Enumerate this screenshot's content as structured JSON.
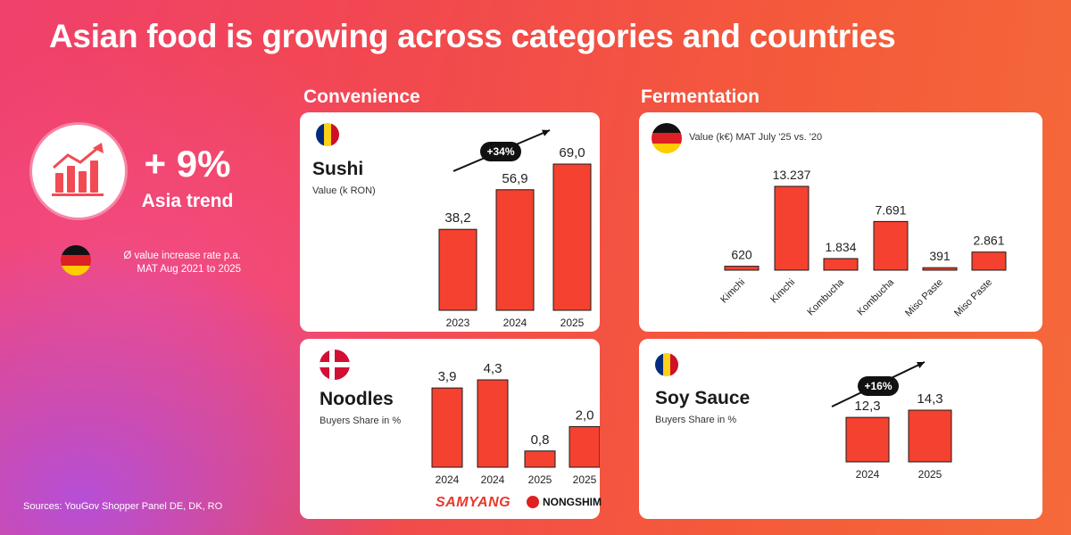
{
  "title": "Asian food is growing across categories and countries",
  "colors": {
    "bar": "#f5412f",
    "bar_stroke": "#1a1a1a",
    "accent": "#f24b55"
  },
  "left_panel": {
    "icon": "growth-chart-icon",
    "increase": "+ 9%",
    "label": "Asia trend",
    "note_line1": "Ø value increase rate p.a.",
    "note_line2": "MAT Aug 2021 to 2025"
  },
  "source": "Sources: YouGov Shopper Panel DE, DK, RO",
  "sections": {
    "convenience": "Convenience",
    "fermentation": "Fermentation"
  },
  "logos": {
    "samyang": "SAMYANG",
    "nongshim": "NONGSHIM"
  },
  "chart_data": [
    {
      "id": "sushi",
      "type": "bar",
      "title": "Sushi",
      "subtitle": "Value (k RON)",
      "country_flag": "Romania",
      "categories": [
        "2023",
        "2024",
        "2025"
      ],
      "values": [
        38.2,
        56.9,
        69.0
      ],
      "labels": [
        "38,2",
        "56,9",
        "69,0"
      ],
      "trend": "+34%",
      "ylim": [
        0,
        69.0
      ]
    },
    {
      "id": "noodles",
      "type": "bar",
      "title": "Noodles",
      "subtitle": "Buyers Share in %",
      "country_flag": "Denmark",
      "categories": [
        "2024",
        "2024",
        "2025",
        "2025"
      ],
      "values": [
        3.9,
        4.3,
        0.8,
        2.0
      ],
      "labels": [
        "3,9",
        "4,3",
        "0,8",
        "2,0"
      ],
      "brands": [
        "SAMYANG",
        "SAMYANG",
        "NONGSHIM",
        "NONGSHIM"
      ],
      "ylim": [
        0,
        4.3
      ]
    },
    {
      "id": "fermentation",
      "type": "bar",
      "title": "",
      "subtitle": "Value (k€) MAT July '25 vs. '20",
      "country_flag": "Germany",
      "categories": [
        "Kimchi",
        "Kimchi",
        "Kombucha",
        "Kombucha",
        "Miso Paste",
        "Miso Paste"
      ],
      "values": [
        620,
        13237,
        1834,
        7691,
        391,
        2861
      ],
      "labels": [
        "620",
        "13.237",
        "1.834",
        "7.691",
        "391",
        "2.861"
      ],
      "ylim": [
        0,
        13237
      ]
    },
    {
      "id": "soysauce",
      "type": "bar",
      "title": "Soy Sauce",
      "subtitle": "Buyers Share in %",
      "country_flag": "Romania",
      "categories": [
        "2024",
        "2025"
      ],
      "values": [
        12.3,
        14.3
      ],
      "labels": [
        "12,3",
        "14,3"
      ],
      "trend": "+16%",
      "ylim": [
        0,
        14.3
      ]
    }
  ]
}
